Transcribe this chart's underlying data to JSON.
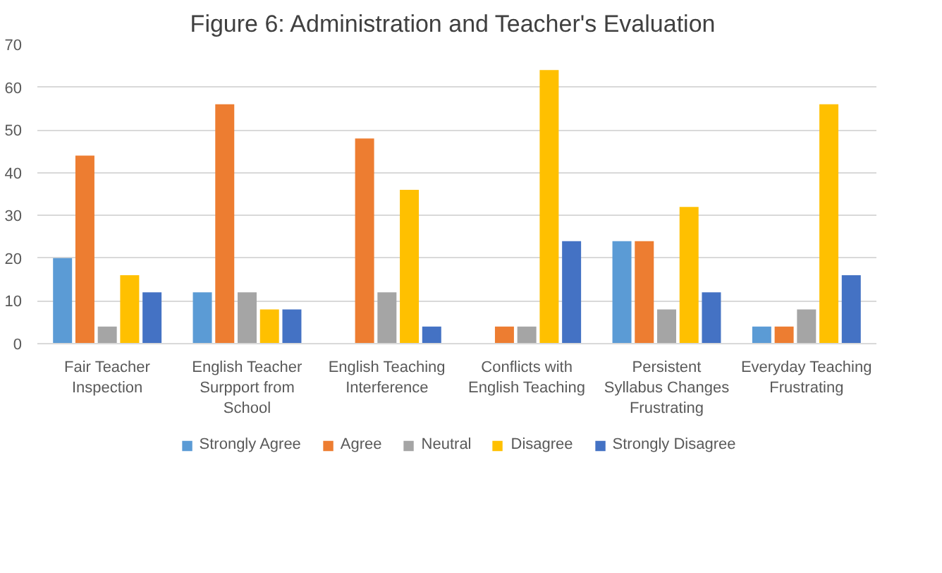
{
  "chart_data": {
    "type": "bar",
    "title": "Figure 6: Administration and Teacher's  Evaluation",
    "categories": [
      "Fair Teacher Inspection",
      "English Teacher Surpport from School",
      "English Teaching Interference",
      "Conflicts with English Teaching",
      "Persistent Syllabus Changes Frustrating",
      "Everyday Teaching Frustrating"
    ],
    "series": [
      {
        "name": "Strongly Agree",
        "color": "#5b9bd5",
        "values": [
          20,
          12,
          0,
          0,
          24,
          4
        ]
      },
      {
        "name": "Agree",
        "color": "#ed7d31",
        "values": [
          44,
          56,
          48,
          4,
          24,
          4
        ]
      },
      {
        "name": "Neutral",
        "color": "#a5a5a5",
        "values": [
          4,
          12,
          12,
          4,
          8,
          8
        ]
      },
      {
        "name": "Disagree",
        "color": "#ffc000",
        "values": [
          16,
          8,
          36,
          64,
          32,
          56
        ]
      },
      {
        "name": "Strongly Disagree",
        "color": "#4472c4",
        "values": [
          12,
          8,
          4,
          24,
          12,
          16
        ]
      }
    ],
    "ylim": [
      0,
      70
    ],
    "yticks": [
      0,
      10,
      20,
      30,
      40,
      50,
      60,
      70
    ],
    "grid": "y",
    "legend": "bottom"
  }
}
